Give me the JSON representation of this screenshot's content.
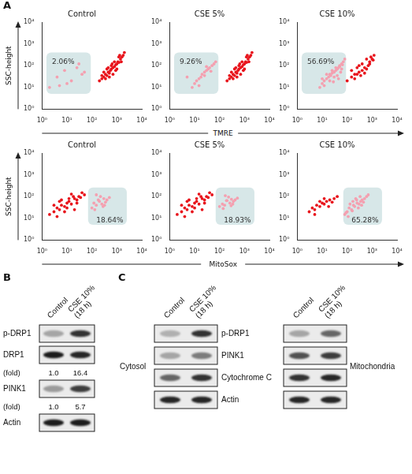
{
  "chart_data": [
    {
      "type": "scatter",
      "title": "Control",
      "log": true,
      "grid": false,
      "xlim": [
        1,
        10000
      ],
      "ylim": [
        1,
        10000
      ],
      "xticks": [
        {
          "value": 1,
          "label": "10⁰"
        },
        {
          "value": 10,
          "label": "10¹"
        },
        {
          "value": 100,
          "label": "10²"
        },
        {
          "value": 1000,
          "label": "10³"
        },
        {
          "value": 10000,
          "label": "10⁴"
        }
      ],
      "yticks": [
        {
          "value": 1,
          "label": "10⁰"
        },
        {
          "value": 10,
          "label": "10¹"
        },
        {
          "value": 100,
          "label": "10²"
        },
        {
          "value": 1000,
          "label": "10³"
        },
        {
          "value": 10000,
          "label": "10⁴"
        }
      ],
      "gate": {
        "x": [
          1.5,
          90
        ],
        "y": [
          5,
          400
        ],
        "color": "#d3e4e6",
        "label": "2.06%",
        "label_x": 2.5,
        "label_y": 150
      },
      "series": [
        {
          "color": "#e8141c",
          "x": [
            200,
            250,
            300,
            350,
            400,
            450,
            500,
            550,
            600,
            700,
            800,
            900,
            1000,
            1100,
            1200,
            1400,
            1600,
            1800,
            2000,
            300,
            400,
            500,
            600,
            700,
            800,
            1000,
            1200,
            1500,
            250,
            350,
            450,
            650,
            900,
            1300
          ],
          "values": [
            20,
            25,
            30,
            40,
            35,
            50,
            45,
            60,
            70,
            80,
            90,
            110,
            120,
            150,
            140,
            200,
            250,
            300,
            400,
            50,
            70,
            30,
            100,
            40,
            150,
            70,
            250,
            150,
            35,
            25,
            80,
            120,
            60,
            300
          ]
        },
        {
          "color": "#f4a0b0",
          "x": [
            2,
            4,
            8,
            15,
            25,
            40,
            5,
            10,
            30,
            50
          ],
          "values": [
            10,
            30,
            60,
            20,
            80,
            40,
            12,
            15,
            120,
            50
          ]
        }
      ]
    },
    {
      "type": "scatter",
      "title": "CSE 5%",
      "log": true,
      "grid": false,
      "xlim": [
        1,
        10000
      ],
      "ylim": [
        1,
        10000
      ],
      "xticks": [
        {
          "value": 1,
          "label": "10⁰"
        },
        {
          "value": 10,
          "label": "10¹"
        },
        {
          "value": 100,
          "label": "10²"
        },
        {
          "value": 1000,
          "label": "10³"
        },
        {
          "value": 10000,
          "label": "10⁴"
        }
      ],
      "yticks": [
        {
          "value": 1,
          "label": "10⁰"
        },
        {
          "value": 10,
          "label": "10¹"
        },
        {
          "value": 100,
          "label": "10²"
        },
        {
          "value": 1000,
          "label": "10³"
        },
        {
          "value": 10000,
          "label": "10⁴"
        }
      ],
      "gate": {
        "x": [
          1.5,
          90
        ],
        "y": [
          5,
          400
        ],
        "color": "#d3e4e6",
        "label": "9.26%",
        "label_x": 2.5,
        "label_y": 150
      },
      "series": [
        {
          "color": "#e8141c",
          "x": [
            200,
            250,
            300,
            350,
            400,
            450,
            500,
            550,
            600,
            700,
            800,
            900,
            1000,
            1100,
            1200,
            1400,
            1600,
            1800,
            2000,
            300,
            400,
            500,
            600,
            700,
            800,
            1000,
            1200,
            1500,
            250,
            350,
            450,
            650,
            900,
            1300
          ],
          "values": [
            20,
            25,
            30,
            40,
            35,
            50,
            45,
            60,
            70,
            80,
            90,
            110,
            120,
            150,
            140,
            200,
            250,
            300,
            400,
            50,
            70,
            30,
            100,
            40,
            150,
            70,
            250,
            150,
            35,
            25,
            80,
            120,
            60,
            300
          ]
        },
        {
          "color": "#f4a0b0",
          "x": [
            10,
            12,
            15,
            18,
            20,
            25,
            30,
            35,
            40,
            50,
            60,
            70,
            15,
            25,
            45,
            8,
            5,
            30
          ],
          "values": [
            15,
            20,
            25,
            30,
            40,
            50,
            60,
            70,
            80,
            100,
            120,
            150,
            12,
            35,
            55,
            10,
            30,
            90
          ]
        }
      ]
    },
    {
      "type": "scatter",
      "title": "CSE 10%",
      "log": true,
      "grid": false,
      "xlim": [
        1,
        10000
      ],
      "ylim": [
        1,
        10000
      ],
      "xticks": [
        {
          "value": 1,
          "label": "10⁰"
        },
        {
          "value": 10,
          "label": "10¹"
        },
        {
          "value": 100,
          "label": "10²"
        },
        {
          "value": 1000,
          "label": "10³"
        },
        {
          "value": 10000,
          "label": "10⁴"
        }
      ],
      "yticks": [
        {
          "value": 1,
          "label": "10⁰"
        },
        {
          "value": 10,
          "label": "10¹"
        },
        {
          "value": 100,
          "label": "10²"
        },
        {
          "value": 1000,
          "label": "10³"
        },
        {
          "value": 10000,
          "label": "10⁴"
        }
      ],
      "gate": {
        "x": [
          1.5,
          90
        ],
        "y": [
          5,
          400
        ],
        "color": "#d3e4e6",
        "label": "56.69%",
        "label_x": 2.5,
        "label_y": 150
      },
      "series": [
        {
          "color": "#e8141c",
          "x": [
            100,
            150,
            200,
            250,
            300,
            350,
            400,
            500,
            600,
            700,
            800,
            1000,
            1200,
            150,
            250,
            400,
            600,
            900,
            200,
            300,
            500,
            800,
            1100
          ],
          "values": [
            20,
            30,
            25,
            40,
            50,
            35,
            60,
            80,
            70,
            100,
            150,
            200,
            300,
            60,
            80,
            120,
            200,
            250,
            40,
            100,
            45,
            120,
            180
          ]
        },
        {
          "color": "#f4a0b0",
          "x": [
            8,
            10,
            12,
            15,
            18,
            20,
            25,
            30,
            35,
            40,
            45,
            50,
            60,
            70,
            80,
            12,
            20,
            30,
            40,
            55,
            15,
            25,
            35,
            50,
            65,
            10,
            22,
            28,
            45,
            60
          ],
          "values": [
            10,
            15,
            20,
            25,
            30,
            40,
            45,
            50,
            60,
            70,
            80,
            100,
            120,
            150,
            200,
            12,
            20,
            30,
            35,
            50,
            40,
            60,
            80,
            90,
            110,
            25,
            35,
            18,
            25,
            70
          ]
        }
      ]
    },
    {
      "type": "scatter",
      "title": "Control",
      "log": true,
      "grid": false,
      "xlim": [
        1,
        10000
      ],
      "ylim": [
        1,
        10000
      ],
      "xticks": [
        {
          "value": 1,
          "label": "10⁰"
        },
        {
          "value": 10,
          "label": "10¹"
        },
        {
          "value": 100,
          "label": "10²"
        },
        {
          "value": 1000,
          "label": "10³"
        },
        {
          "value": 10000,
          "label": "10⁴"
        }
      ],
      "yticks": [
        {
          "value": 1,
          "label": "10⁰"
        },
        {
          "value": 10,
          "label": "10¹"
        },
        {
          "value": 100,
          "label": "10²"
        },
        {
          "value": 1000,
          "label": "10³"
        },
        {
          "value": 10000,
          "label": "10⁴"
        }
      ],
      "gate": {
        "x": [
          70,
          2500
        ],
        "y": [
          5,
          260
        ],
        "color": "#d3e4e6",
        "label": "18.64%",
        "label_x": 150,
        "label_y": 8
      },
      "series": [
        {
          "color": "#e8141c",
          "x": [
            2,
            3,
            4,
            5,
            6,
            8,
            10,
            12,
            15,
            20,
            25,
            30,
            40,
            50,
            3,
            5,
            8,
            12,
            18,
            25,
            4,
            6,
            10,
            15,
            20,
            35
          ],
          "values": [
            15,
            20,
            30,
            25,
            40,
            35,
            50,
            60,
            45,
            80,
            70,
            100,
            150,
            120,
            40,
            60,
            20,
            80,
            100,
            50,
            12,
            70,
            30,
            130,
            25,
            90
          ]
        },
        {
          "color": "#f4a0b0",
          "x": [
            100,
            120,
            150,
            200,
            250,
            300,
            350,
            400,
            500,
            130,
            180,
            220,
            280,
            150,
            320
          ],
          "values": [
            30,
            50,
            40,
            60,
            45,
            80,
            55,
            70,
            90,
            25,
            70,
            100,
            35,
            120,
            40
          ]
        }
      ]
    },
    {
      "type": "scatter",
      "title": "CSE 5%",
      "log": true,
      "grid": false,
      "xlim": [
        1,
        10000
      ],
      "ylim": [
        1,
        10000
      ],
      "xticks": [
        {
          "value": 1,
          "label": "10⁰"
        },
        {
          "value": 10,
          "label": "10¹"
        },
        {
          "value": 100,
          "label": "10²"
        },
        {
          "value": 1000,
          "label": "10³"
        },
        {
          "value": 10000,
          "label": "10⁴"
        }
      ],
      "yticks": [
        {
          "value": 1,
          "label": "10⁰"
        },
        {
          "value": 10,
          "label": "10¹"
        },
        {
          "value": 100,
          "label": "10²"
        },
        {
          "value": 1000,
          "label": "10³"
        },
        {
          "value": 10000,
          "label": "10⁴"
        }
      ],
      "gate": {
        "x": [
          70,
          2500
        ],
        "y": [
          5,
          260
        ],
        "color": "#d3e4e6",
        "label": "18.93%",
        "label_x": 150,
        "label_y": 8
      },
      "series": [
        {
          "color": "#e8141c",
          "x": [
            2,
            3,
            4,
            5,
            6,
            8,
            10,
            12,
            15,
            20,
            25,
            30,
            40,
            50,
            3,
            5,
            8,
            12,
            18,
            25,
            4,
            6,
            10,
            15,
            20,
            35
          ],
          "values": [
            15,
            20,
            30,
            25,
            40,
            35,
            50,
            60,
            45,
            80,
            70,
            100,
            150,
            120,
            40,
            60,
            20,
            80,
            100,
            50,
            12,
            70,
            30,
            130,
            25,
            90
          ]
        },
        {
          "color": "#f4a0b0",
          "x": [
            100,
            130,
            160,
            200,
            260,
            300,
            360,
            420,
            520,
            140,
            190,
            230,
            290,
            170,
            340
          ],
          "values": [
            35,
            45,
            40,
            65,
            50,
            75,
            60,
            70,
            85,
            28,
            65,
            95,
            38,
            110,
            45
          ]
        }
      ]
    },
    {
      "type": "scatter",
      "title": "CSE 10%",
      "log": true,
      "grid": false,
      "xlim": [
        1,
        10000
      ],
      "ylim": [
        1,
        10000
      ],
      "xticks": [
        {
          "value": 1,
          "label": "10⁰"
        },
        {
          "value": 10,
          "label": "10¹"
        },
        {
          "value": 100,
          "label": "10²"
        },
        {
          "value": 1000,
          "label": "10³"
        },
        {
          "value": 10000,
          "label": "10⁴"
        }
      ],
      "yticks": [
        {
          "value": 1,
          "label": "10⁰"
        },
        {
          "value": 10,
          "label": "10¹"
        },
        {
          "value": 100,
          "label": "10²"
        },
        {
          "value": 1000,
          "label": "10³"
        },
        {
          "value": 10000,
          "label": "10⁴"
        }
      ],
      "gate": {
        "x": [
          70,
          2500
        ],
        "y": [
          5,
          260
        ],
        "color": "#d3e4e6",
        "label": "65.28%",
        "label_x": 150,
        "label_y": 8
      },
      "series": [
        {
          "color": "#e8141c",
          "x": [
            3,
            4,
            5,
            6,
            8,
            10,
            12,
            15,
            20,
            25,
            30,
            40,
            5,
            8,
            12,
            18
          ],
          "values": [
            20,
            30,
            25,
            40,
            35,
            50,
            45,
            60,
            70,
            55,
            80,
            100,
            15,
            60,
            80,
            35
          ]
        },
        {
          "color": "#f4a0b0",
          "x": [
            80,
            100,
            120,
            150,
            180,
            200,
            250,
            300,
            350,
            400,
            500,
            600,
            700,
            90,
            130,
            170,
            220,
            280,
            330,
            450,
            110,
            160,
            240,
            380
          ],
          "values": [
            15,
            20,
            30,
            25,
            40,
            35,
            50,
            45,
            60,
            70,
            80,
            100,
            120,
            18,
            45,
            60,
            80,
            30,
            100,
            55,
            12,
            22,
            70,
            40
          ]
        }
      ]
    }
  ],
  "figure": {
    "panel_a": {
      "letter": "A",
      "ylabel": "SSC-height",
      "row_xlabels": [
        "TMRE",
        "MitoSox"
      ]
    },
    "panel_b": {
      "letter": "B",
      "lanes": [
        "Control",
        "CSE 10% (18 h)"
      ],
      "rows": [
        {
          "label": "p-DRP1",
          "bands": [
            0.3,
            0.85
          ]
        },
        {
          "label": "DRP1",
          "bands": [
            0.95,
            0.9
          ]
        },
        {
          "label": "(fold)",
          "values": [
            "1.0",
            "16.4"
          ]
        },
        {
          "label": "PINK1",
          "bands": [
            0.35,
            0.8
          ]
        },
        {
          "label": "(fold)",
          "values": [
            "1.0",
            "5.7"
          ]
        },
        {
          "label": "Actin",
          "bands": [
            0.95,
            0.95
          ]
        }
      ]
    },
    "panel_c": {
      "letter": "C",
      "lanes": [
        "Control",
        "CSE 10% (18 h)"
      ],
      "row_labels": [
        "p-DRP1",
        "PINK1",
        "Cytochrome C",
        "Actin"
      ],
      "fractions": [
        {
          "label": "Cytosol",
          "bands": [
            [
              0.25,
              0.85
            ],
            [
              0.3,
              0.5
            ],
            [
              0.6,
              0.85
            ],
            [
              0.9,
              0.9
            ]
          ]
        },
        {
          "label": "Mitochondria",
          "bands": [
            [
              0.3,
              0.6
            ],
            [
              0.7,
              0.8
            ],
            [
              0.85,
              0.9
            ],
            [
              0.9,
              0.9
            ]
          ]
        }
      ]
    }
  }
}
